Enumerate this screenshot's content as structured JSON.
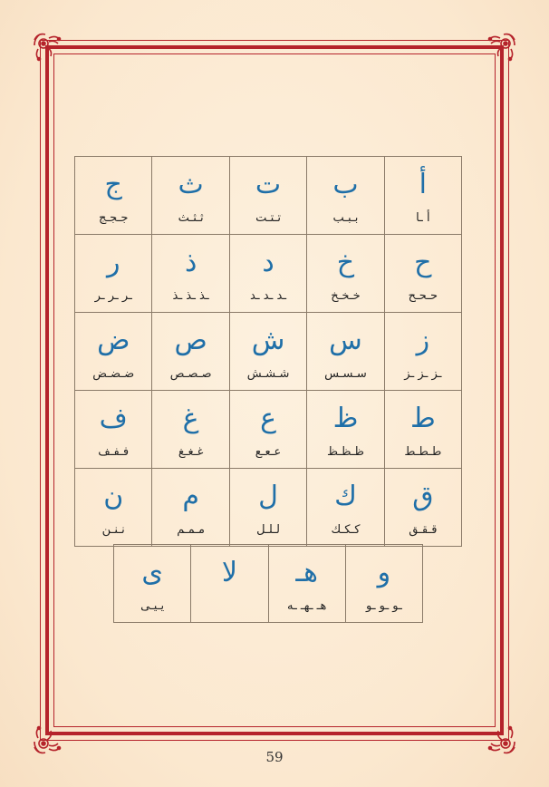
{
  "rows": [
    [
      {
        "letter": "أ",
        "forms": "أ ـا"
      },
      {
        "letter": "ب",
        "forms": "بـبـب"
      },
      {
        "letter": "ت",
        "forms": "تـتـت"
      },
      {
        "letter": "ث",
        "forms": "ثـثـث"
      },
      {
        "letter": "ج",
        "forms": "جـجـج"
      }
    ],
    [
      {
        "letter": "ح",
        "forms": "حـحـح"
      },
      {
        "letter": "خ",
        "forms": "خـخـخ"
      },
      {
        "letter": "د",
        "forms": "ـد ـد ـد"
      },
      {
        "letter": "ذ",
        "forms": "ـذ ـذ ـذ"
      },
      {
        "letter": "ر",
        "forms": "ـر ـر ـر"
      }
    ],
    [
      {
        "letter": "ز",
        "forms": "ـز ـز ـز"
      },
      {
        "letter": "س",
        "forms": "سـسـس"
      },
      {
        "letter": "ش",
        "forms": "شـشـش"
      },
      {
        "letter": "ص",
        "forms": "صـصـص"
      },
      {
        "letter": "ض",
        "forms": "ضـضـض"
      }
    ],
    [
      {
        "letter": "ط",
        "forms": "طـطـط"
      },
      {
        "letter": "ظ",
        "forms": "ظـظـظ"
      },
      {
        "letter": "ع",
        "forms": "عـعـع"
      },
      {
        "letter": "غ",
        "forms": "غـغـغ"
      },
      {
        "letter": "ف",
        "forms": "فـفـف"
      }
    ],
    [
      {
        "letter": "ق",
        "forms": "قـقـق"
      },
      {
        "letter": "ك",
        "forms": "كـكـك"
      },
      {
        "letter": "ل",
        "forms": "لـلـل"
      },
      {
        "letter": "م",
        "forms": "مـمـم"
      },
      {
        "letter": "ن",
        "forms": "نـنـن"
      }
    ]
  ],
  "last_row": [
    {
      "letter": "و",
      "forms": "ـو ـو ـو"
    },
    {
      "letter": "هـ",
      "forms": "هـ ـهـ ـه"
    },
    {
      "letter": "لا",
      "forms": ""
    },
    {
      "letter": "ى",
      "forms": "يـيـى"
    }
  ],
  "page_number": "59",
  "colors": {
    "letter": "#1f6fa8",
    "frame": "#b5232b",
    "background": "#fbe9d0"
  }
}
